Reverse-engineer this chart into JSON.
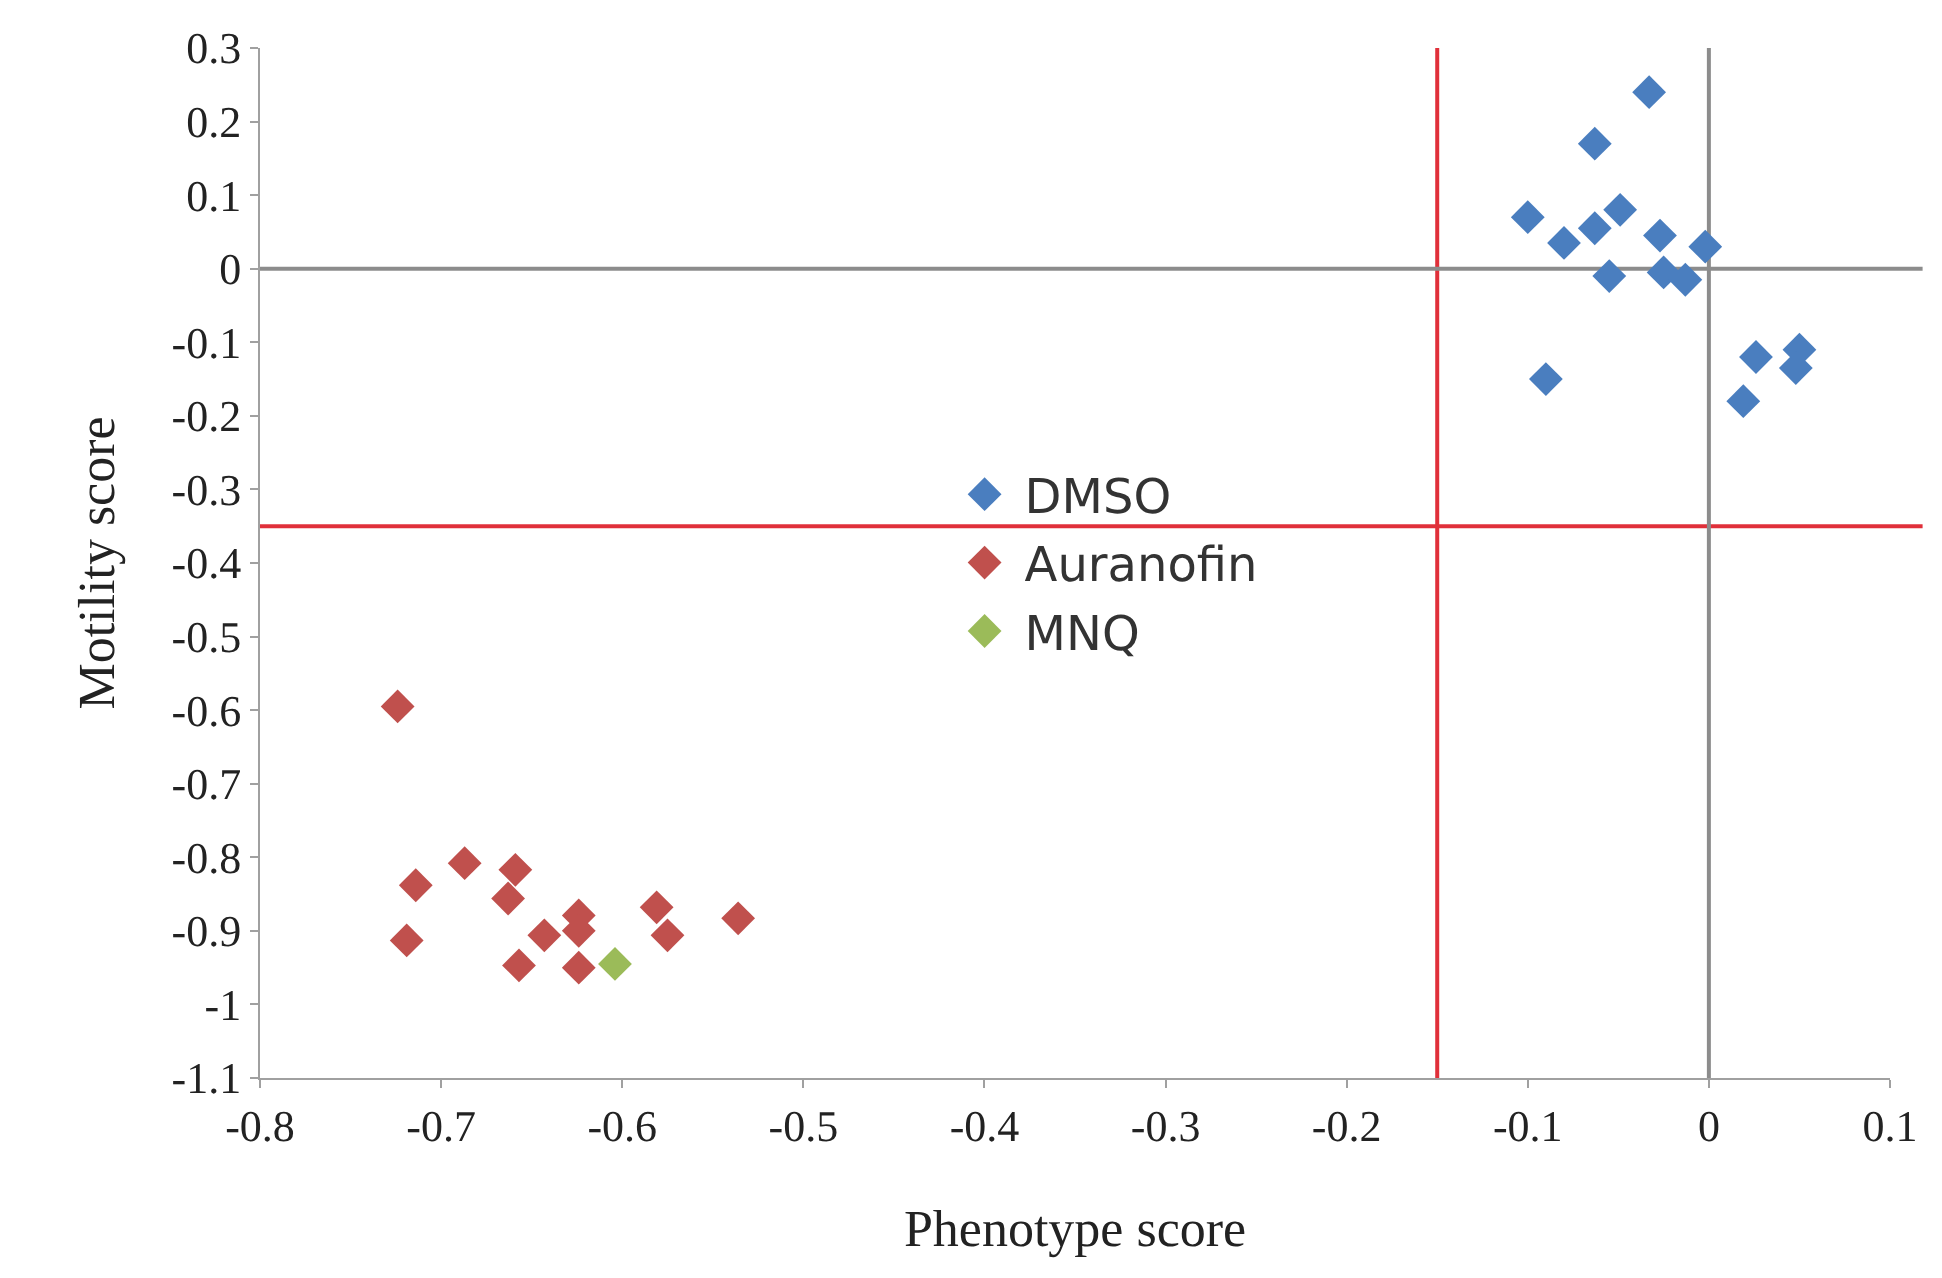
{
  "chart_data": {
    "type": "scatter",
    "xlabel": "Phenotype score",
    "ylabel": "Motility score",
    "xlim": [
      -0.8,
      0.1
    ],
    "xticks": [
      -0.8,
      -0.7,
      -0.6,
      -0.5,
      -0.4,
      -0.3,
      -0.2,
      -0.1,
      0,
      0.1
    ],
    "ylim": [
      -1.1,
      0.3
    ],
    "yticks": [
      -1.1,
      -1,
      -0.9,
      -0.8,
      -0.7,
      -0.6,
      -0.5,
      -0.4,
      -0.3,
      -0.2,
      -0.1,
      0,
      0.1,
      0.2,
      0.3
    ],
    "marker": "diamond",
    "grid": false,
    "legend": "center",
    "ref_lines": [
      {
        "axis": "x",
        "value": -0.15,
        "color": "#e0303a"
      },
      {
        "axis": "y",
        "value": -0.35,
        "color": "#e0303a"
      },
      {
        "axis": "x",
        "value": 0,
        "color": "#8c8c8c"
      },
      {
        "axis": "y",
        "value": 0,
        "color": "#8c8c8c"
      }
    ],
    "series": [
      {
        "name": "DMSO",
        "color": "#4a7ebf",
        "x": [
          -0.1,
          -0.08,
          -0.063,
          -0.049,
          -0.063,
          -0.033,
          -0.055,
          -0.027,
          -0.025,
          -0.013,
          -0.002,
          -0.09,
          0.026,
          0.05,
          0.048,
          0.019
        ],
        "values": [
          0.07,
          0.035,
          0.17,
          0.08,
          0.055,
          0.24,
          -0.01,
          0.045,
          -0.005,
          -0.015,
          0.03,
          -0.15,
          -0.12,
          -0.11,
          -0.135,
          -0.18
        ]
      },
      {
        "name": "Auranofin",
        "color": "#c0504d",
        "x": [
          -0.724,
          -0.714,
          -0.719,
          -0.687,
          -0.659,
          -0.663,
          -0.657,
          -0.643,
          -0.624,
          -0.624,
          -0.624,
          -0.581,
          -0.575,
          -0.536
        ],
        "values": [
          -0.595,
          -0.838,
          -0.913,
          -0.808,
          -0.817,
          -0.856,
          -0.947,
          -0.906,
          -0.879,
          -0.9,
          -0.95,
          -0.868,
          -0.906,
          -0.883
        ]
      },
      {
        "name": "MNQ",
        "color": "#9bbb59",
        "x": [
          -0.604
        ],
        "values": [
          -0.945
        ]
      }
    ]
  }
}
